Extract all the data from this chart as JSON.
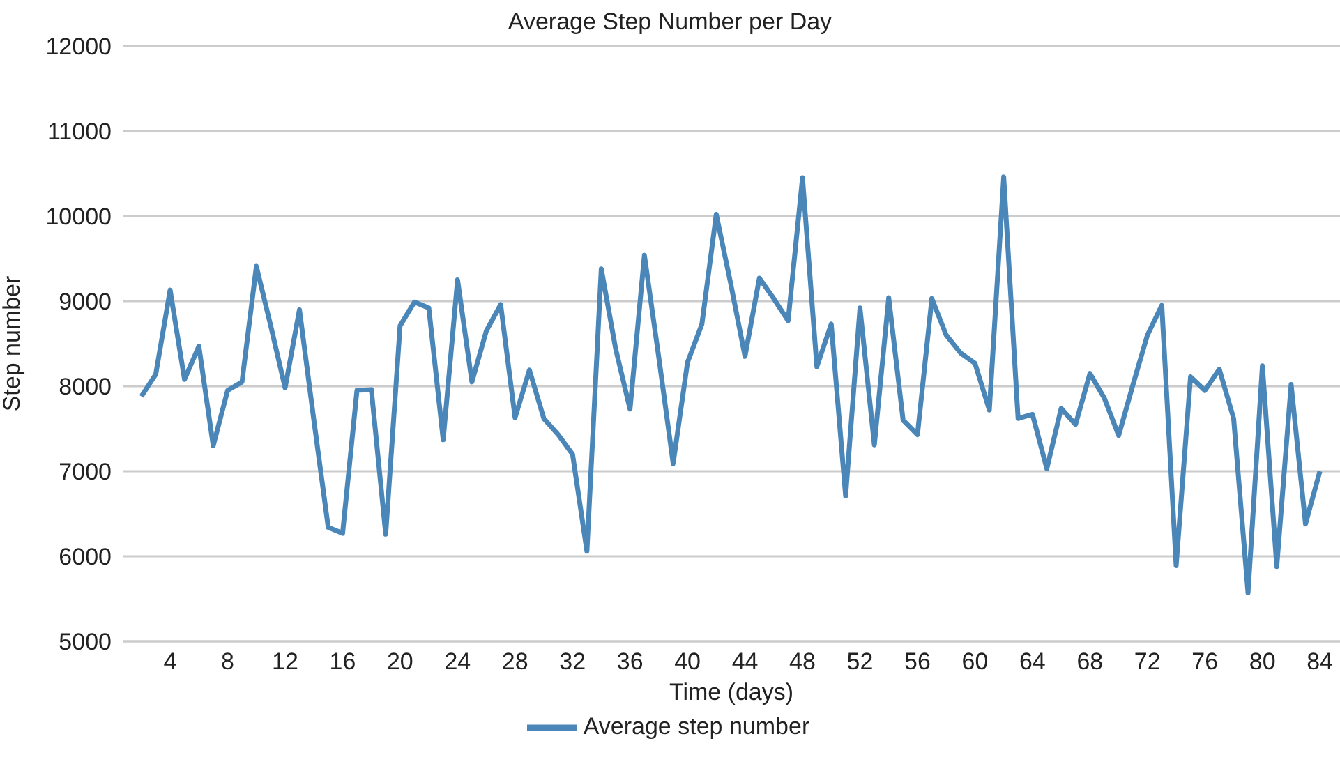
{
  "chart_data": {
    "type": "line",
    "title": "Average Step Number per Day",
    "xlabel": "Time (days)",
    "ylabel": "Step number",
    "x": [
      2,
      3,
      4,
      5,
      6,
      7,
      8,
      9,
      10,
      11,
      12,
      13,
      14,
      15,
      16,
      17,
      18,
      19,
      20,
      21,
      22,
      23,
      24,
      25,
      26,
      27,
      28,
      29,
      30,
      31,
      32,
      33,
      34,
      35,
      36,
      37,
      38,
      39,
      40,
      41,
      42,
      43,
      44,
      45,
      46,
      47,
      48,
      49,
      50,
      51,
      52,
      53,
      54,
      55,
      56,
      57,
      58,
      59,
      60,
      61,
      62,
      63,
      64,
      65,
      66,
      67,
      68,
      69,
      70,
      71,
      72,
      73,
      74,
      75,
      76,
      77,
      78,
      79,
      80,
      81,
      82,
      83,
      84
    ],
    "series": [
      {
        "name": "Average step number",
        "color": "#4a86b8",
        "values": [
          7880,
          8140,
          9130,
          8080,
          8470,
          7300,
          7950,
          8050,
          9410,
          8710,
          7980,
          8900,
          7600,
          6340,
          6270,
          7950,
          7960,
          6260,
          8710,
          8990,
          8920,
          7370,
          9250,
          8050,
          8650,
          8960,
          7630,
          8190,
          7620,
          7430,
          7200,
          6060,
          9380,
          8440,
          7730,
          9540,
          8340,
          7090,
          8280,
          8730,
          10020,
          9210,
          8350,
          9270,
          9030,
          8770,
          10450,
          8230,
          8730,
          6710,
          8920,
          7310,
          9040,
          7600,
          7430,
          9030,
          8600,
          8390,
          8270,
          7720,
          10460,
          7620,
          7670,
          7030,
          7740,
          7550,
          8150,
          7860,
          7420,
          8020,
          8600,
          8950,
          5890,
          8110,
          7950,
          8200,
          7620,
          5570,
          8240,
          5880,
          8020,
          6380,
          7000
        ]
      }
    ],
    "xlim": [
      0.7,
      85.4
    ],
    "xticks": [
      4,
      8,
      12,
      16,
      20,
      24,
      28,
      32,
      36,
      40,
      44,
      48,
      52,
      56,
      60,
      64,
      68,
      72,
      76,
      80,
      84
    ],
    "ylim": [
      5000,
      12000
    ],
    "yticks": [
      5000,
      6000,
      7000,
      8000,
      9000,
      10000,
      11000,
      12000
    ],
    "grid": "y",
    "legend": "bottom",
    "marker": "none",
    "line_style": "solid"
  }
}
